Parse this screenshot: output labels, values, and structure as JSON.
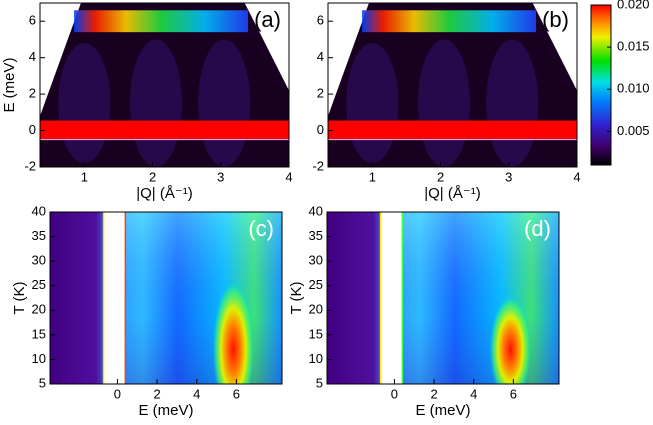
{
  "chart_data": [
    {
      "type": "heatmap",
      "panel_label": "(a)",
      "xlabel": "|Q| (Å⁻¹)",
      "ylabel": "E (meV)",
      "xlim": [
        0.35,
        4
      ],
      "xticks": [
        1,
        2,
        3,
        4
      ],
      "ylim": [
        -2,
        7
      ],
      "yticks": [
        -2,
        0,
        2,
        4,
        6
      ]
    },
    {
      "type": "heatmap",
      "panel_label": "(b)",
      "xlabel": "|Q| (Å⁻¹)",
      "xlim": [
        0.35,
        4
      ],
      "xticks": [
        1,
        2,
        3,
        4
      ],
      "ylim": [
        -2,
        7
      ],
      "yticks": [
        -2,
        0,
        2,
        4,
        6
      ],
      "zlim": [
        0.001,
        0.02
      ],
      "zticks": [
        {
          "value": 0.02,
          "label": "0.020"
        },
        0.015,
        {
          "value": 0.01,
          "label": "0.010"
        },
        0.005
      ]
    },
    {
      "type": "heatmap",
      "panel_label": "(c)",
      "xlabel": "E (meV)",
      "ylabel": "T (K)",
      "xlim": [
        -3.4,
        8.3
      ],
      "xticks": [
        0,
        2,
        4,
        6
      ],
      "ylim": [
        5,
        40
      ],
      "yticks": [
        5,
        10,
        15,
        20,
        25,
        30,
        35,
        40
      ]
    },
    {
      "type": "heatmap",
      "panel_label": "(d)",
      "xlabel": "E (meV)",
      "ylabel": "T (K)",
      "xlim": [
        -3.4,
        8.3
      ],
      "xticks": [
        0,
        2,
        4,
        6
      ],
      "ylim": [
        5,
        40
      ],
      "yticks": [
        5,
        10,
        15,
        20,
        25,
        30,
        35,
        40
      ]
    }
  ]
}
